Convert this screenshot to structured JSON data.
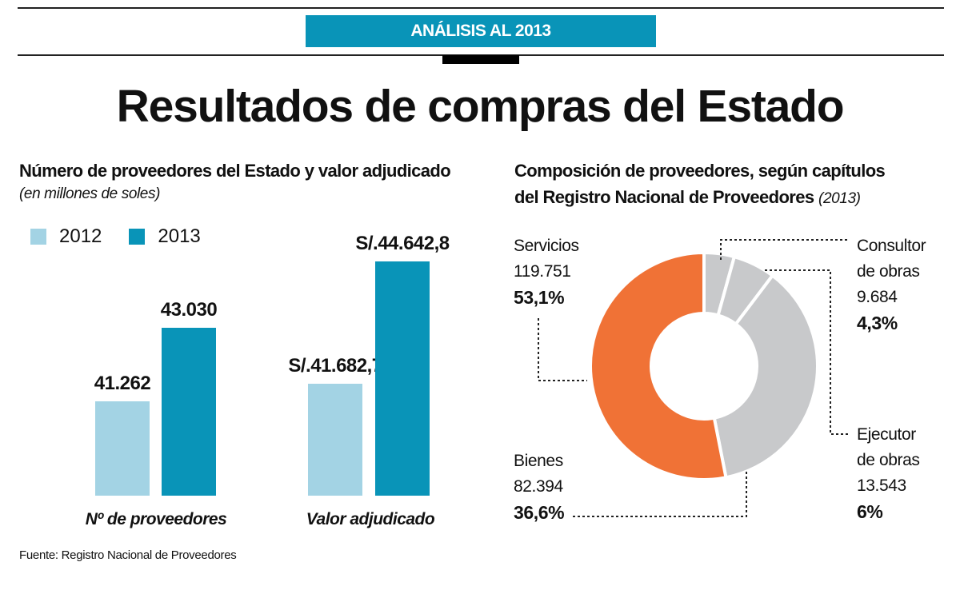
{
  "header": {
    "banner": "ANÁLISIS AL 2013",
    "title": "Resultados de compras del Estado"
  },
  "colors": {
    "accent": "#0994b8",
    "light_blue": "#a3d3e4",
    "orange": "#f07236",
    "gray": "#c8c9cb"
  },
  "chart_data": [
    {
      "type": "bar",
      "title": "Número de proveedores del Estado y valor adjudicado",
      "subtitle": "(en millones de soles)",
      "categories": [
        "Nº de proveedores",
        "Valor adjudicado"
      ],
      "series": [
        {
          "name": "2012",
          "values": [
            41262,
            41682.7
          ],
          "labels": [
            "41.262",
            "S/.41.682,7"
          ],
          "color": "#a3d3e4"
        },
        {
          "name": "2013",
          "values": [
            43030,
            44642.8
          ],
          "labels": [
            "43.030",
            "S/.44.642,8"
          ],
          "color": "#0994b8"
        }
      ],
      "legend": "top-left"
    },
    {
      "type": "pie",
      "title": "Composición de proveedores, según capítulos",
      "title_line2": "del Registro Nacional de Proveedores",
      "title_year": "(2013)",
      "donut": true,
      "slices": [
        {
          "name": "Consultor",
          "name2": "de obras",
          "value": 9684,
          "value_label": "9.684",
          "percent": 4.3,
          "percent_label": "4,3%",
          "color": "#c8c9cb"
        },
        {
          "name": "Ejecutor",
          "name2": "de obras",
          "value": 13543,
          "value_label": "13.543",
          "percent": 6,
          "percent_label": "6%",
          "color": "#c8c9cb"
        },
        {
          "name": "Bienes",
          "value": 82394,
          "value_label": "82.394",
          "percent": 36.6,
          "percent_label": "36,6%",
          "color": "#c8c9cb"
        },
        {
          "name": "Servicios",
          "value": 119751,
          "value_label": "119.751",
          "percent": 53.1,
          "percent_label": "53,1%",
          "color": "#f07236"
        }
      ]
    }
  ],
  "footer": {
    "source": "Fuente: Registro Nacional de Proveedores"
  }
}
